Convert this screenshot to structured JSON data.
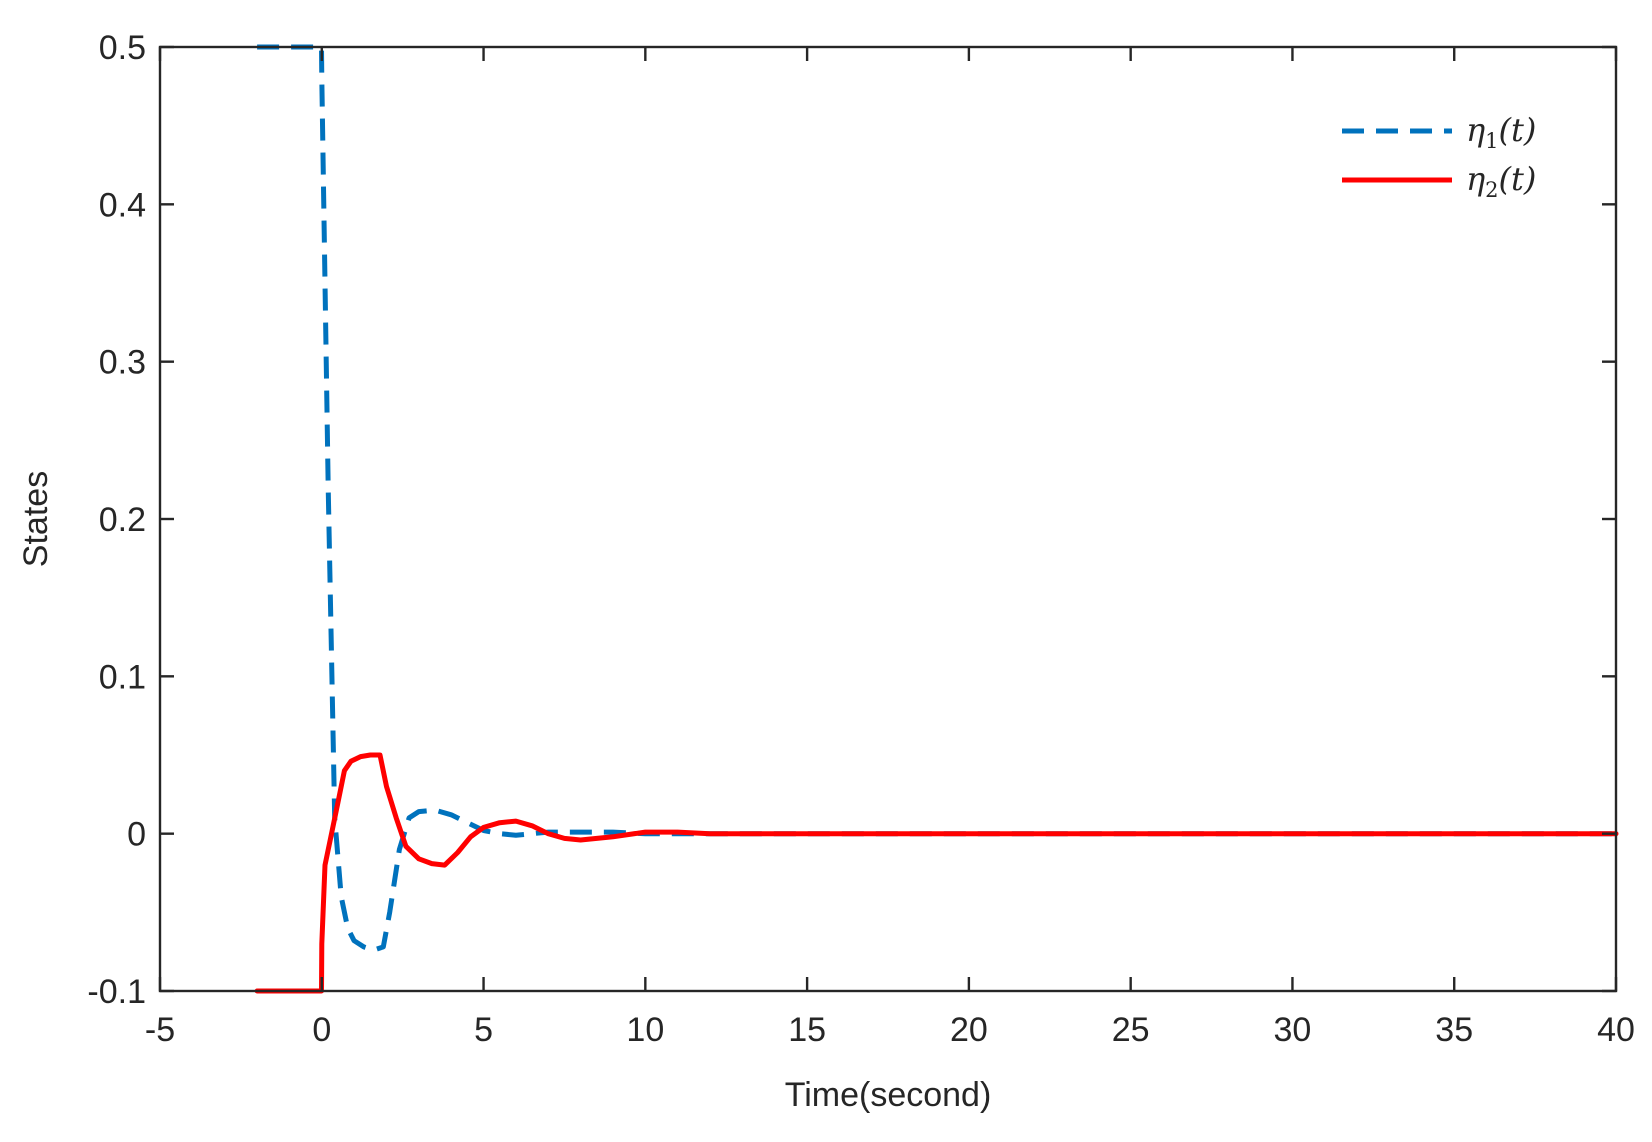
{
  "chart_data": {
    "type": "line",
    "xlabel": "Time(second)",
    "ylabel": "States",
    "xlim": [
      -5,
      40
    ],
    "ylim": [
      -0.1,
      0.5
    ],
    "xticks": [
      "-5",
      "0",
      "5",
      "10",
      "15",
      "20",
      "25",
      "30",
      "35",
      "40"
    ],
    "yticks": [
      "-0.1",
      "0",
      "0.1",
      "0.2",
      "0.3",
      "0.4",
      "0.5"
    ],
    "grid": false,
    "legend_position": "top-right",
    "series": [
      {
        "name": "η1(t)",
        "legend": {
          "symbol": "η",
          "sub": "1",
          "arg": "(t)"
        },
        "color": "#0072BD",
        "style": "dashed",
        "x": [
          -2,
          -0.01,
          0,
          0.2,
          0.4,
          0.6,
          0.8,
          1.0,
          1.3,
          1.6,
          1.9,
          2.1,
          2.4,
          2.7,
          3.0,
          3.5,
          4.0,
          4.5,
          5.0,
          5.5,
          6.0,
          6.5,
          7.0,
          8.0,
          9.0,
          10.0,
          12.0,
          15.0,
          20.0,
          25.0,
          30.0,
          35.0,
          40.0
        ],
        "y": [
          0.5,
          0.5,
          0.48,
          0.22,
          0.01,
          -0.04,
          -0.06,
          -0.068,
          -0.072,
          -0.074,
          -0.072,
          -0.05,
          -0.01,
          0.01,
          0.014,
          0.015,
          0.012,
          0.007,
          0.002,
          0.0,
          -0.001,
          0.0,
          0.001,
          0.001,
          0.001,
          0.0,
          0.0,
          0.0,
          0.0,
          0.0,
          0.0,
          0.0,
          0.0
        ]
      },
      {
        "name": "η2(t)",
        "legend": {
          "symbol": "η",
          "sub": "2",
          "arg": "(t)"
        },
        "color": "#FF0000",
        "style": "solid",
        "x": [
          -2,
          -0.01,
          0,
          0.1,
          0.3,
          0.5,
          0.7,
          0.9,
          1.2,
          1.5,
          1.8,
          2.0,
          2.3,
          2.6,
          3.0,
          3.4,
          3.8,
          4.2,
          4.6,
          5.0,
          5.5,
          6.0,
          6.5,
          7.0,
          7.5,
          8.0,
          9.0,
          10.0,
          11.0,
          12.0,
          15.0,
          20.0,
          25.0,
          30.0,
          35.0,
          40.0
        ],
        "y": [
          -0.1,
          -0.1,
          -0.07,
          -0.02,
          0.0,
          0.02,
          0.04,
          0.046,
          0.049,
          0.05,
          0.05,
          0.03,
          0.01,
          -0.008,
          -0.016,
          -0.019,
          -0.02,
          -0.012,
          -0.002,
          0.004,
          0.007,
          0.008,
          0.005,
          0.0,
          -0.003,
          -0.004,
          -0.002,
          0.001,
          0.001,
          0.0,
          0.0,
          0.0,
          0.0,
          0.0,
          0.0,
          0.0
        ]
      }
    ]
  }
}
